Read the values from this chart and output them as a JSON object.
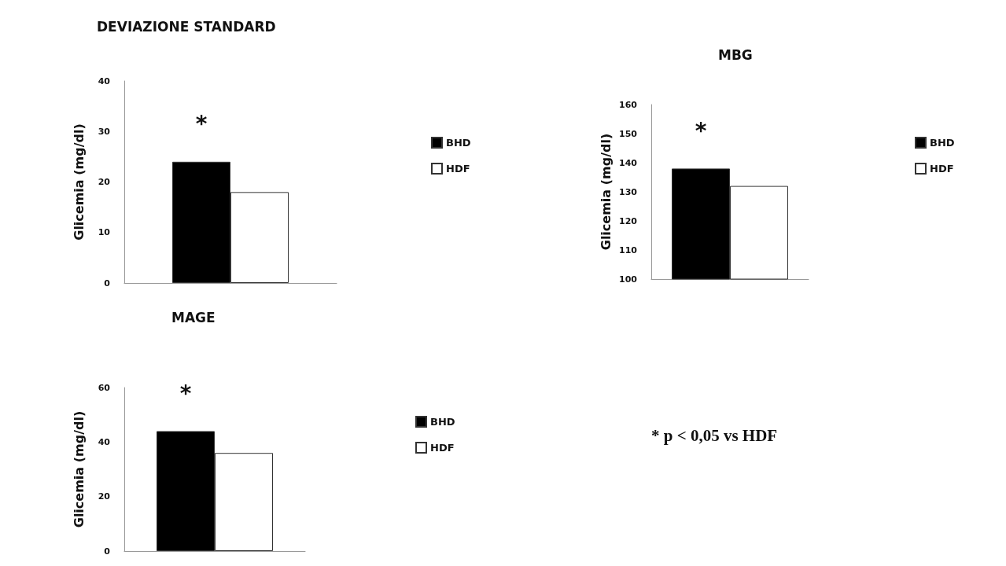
{
  "chart_data": [
    {
      "type": "bar",
      "title": "DEVIAZIONE STANDARD",
      "ylabel": "Glicemia (mg/dl)",
      "categories": [
        null
      ],
      "series": [
        {
          "name": "BHD",
          "color": "#000000",
          "values": [
            24
          ]
        },
        {
          "name": "HDF",
          "color": "#ffffff",
          "values": [
            18
          ]
        }
      ],
      "ylim": [
        0,
        40
      ],
      "yticks": [
        0,
        10,
        20,
        30,
        40
      ],
      "grid": false,
      "legend": "right",
      "annotations": [
        "*"
      ]
    },
    {
      "type": "bar",
      "title": "MBG",
      "ylabel": "Glicemia (mg/dl)",
      "categories": [
        null
      ],
      "series": [
        {
          "name": "BHD",
          "color": "#000000",
          "values": [
            138
          ]
        },
        {
          "name": "HDF",
          "color": "#ffffff",
          "values": [
            132
          ]
        }
      ],
      "ylim": [
        100,
        160
      ],
      "yticks": [
        100,
        110,
        120,
        130,
        140,
        150,
        160
      ],
      "grid": false,
      "legend": "right",
      "annotations": [
        "*"
      ]
    },
    {
      "type": "bar",
      "title": "MAGE",
      "ylabel": "Glicemia (mg/dl)",
      "categories": [
        null
      ],
      "series": [
        {
          "name": "BHD",
          "color": "#000000",
          "values": [
            44
          ]
        },
        {
          "name": "HDF",
          "color": "#ffffff",
          "values": [
            36
          ]
        }
      ],
      "ylim": [
        0,
        60
      ],
      "yticks": [
        0,
        20,
        40,
        60
      ],
      "grid": false,
      "legend": "right",
      "annotations": [
        "*",
        "* p < 0,05 vs HDF"
      ]
    }
  ]
}
